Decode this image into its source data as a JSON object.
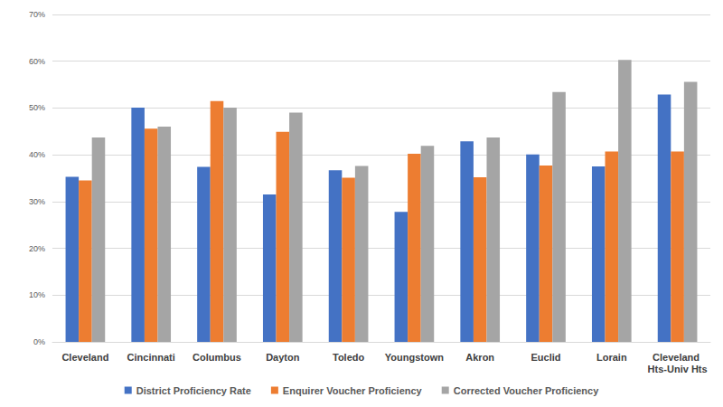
{
  "chart_data": {
    "type": "bar",
    "categories": [
      "Cleveland",
      "Cincinnati",
      "Columbus",
      "Dayton",
      "Toledo",
      "Youngstown",
      "Akron",
      "Euclid",
      "Lorain",
      "Cleveland Hts-Univ Hts"
    ],
    "series": [
      {
        "name": "District Proficiency Rate",
        "color": "#4472c4",
        "values": [
          35.3,
          50.1,
          37.4,
          31.5,
          36.7,
          27.8,
          42.9,
          40.1,
          37.5,
          52.9
        ]
      },
      {
        "name": "Enquirer Voucher Proficiency",
        "color": "#ed7d31",
        "values": [
          34.5,
          45.6,
          51.5,
          44.9,
          35.1,
          40.2,
          35.2,
          37.7,
          40.7,
          40.7
        ]
      },
      {
        "name": "Corrected Voucher Proficiency",
        "color": "#a5a5a5",
        "values": [
          43.7,
          46.0,
          50.1,
          49.0,
          37.6,
          41.9,
          43.7,
          53.4,
          60.3,
          55.6
        ]
      }
    ],
    "ylim": [
      0,
      70
    ],
    "yticks": [
      {
        "value": 0,
        "label": "0%"
      },
      {
        "value": 10,
        "label": "10%"
      },
      {
        "value": 20,
        "label": "20%"
      },
      {
        "value": 30,
        "label": "30%"
      },
      {
        "value": 40,
        "label": "40%"
      },
      {
        "value": 50,
        "label": "50%"
      },
      {
        "value": 60,
        "label": "60%"
      },
      {
        "value": 70,
        "label": "70%"
      }
    ],
    "grid": true,
    "legend": "bottom"
  }
}
